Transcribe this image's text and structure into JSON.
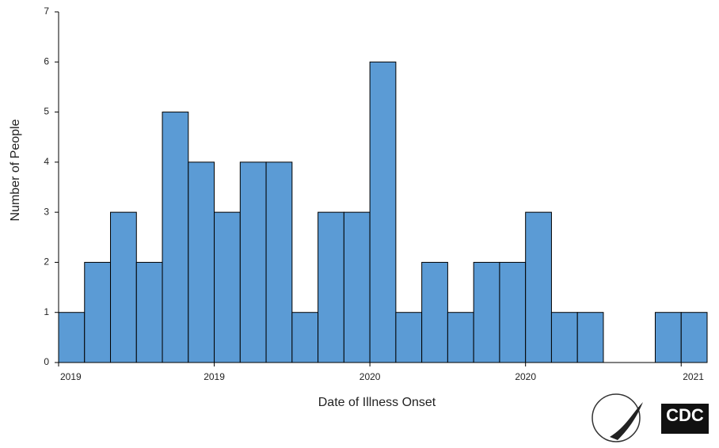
{
  "chart_data": {
    "type": "bar",
    "x_label": "Date of Illness Onset",
    "y_label": "Number of People",
    "categories": [
      "2019",
      null,
      null,
      null,
      null,
      null,
      "2019",
      null,
      null,
      null,
      null,
      null,
      "2020",
      null,
      null,
      null,
      null,
      null,
      "2020",
      null,
      null,
      null,
      null,
      null,
      "2021"
    ],
    "values": [
      1,
      2,
      3,
      2,
      5,
      4,
      3,
      4,
      4,
      1,
      3,
      3,
      6,
      1,
      2,
      1,
      2,
      2,
      3,
      1,
      1,
      0,
      0,
      1,
      1
    ],
    "color": "#5b9bd5",
    "ylim": [
      0,
      7
    ],
    "yticks": [
      0,
      1,
      2,
      3,
      4,
      5,
      6,
      7
    ],
    "grid": false
  },
  "logo_text": "CDC"
}
